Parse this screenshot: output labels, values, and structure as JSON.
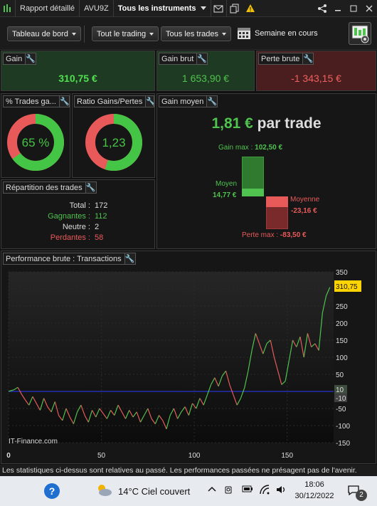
{
  "titlebar": {
    "report_label": "Rapport détaillé",
    "account": "AVU9Z",
    "instruments": "Tous les instruments",
    "warning": "!"
  },
  "toolbar": {
    "dashboard": "Tableau de bord",
    "trading": "Tout le trading",
    "trades": "Tous les trades",
    "period": "Semaine en cours"
  },
  "gain": {
    "title": "Gain",
    "value": "310,75 €"
  },
  "gain_brut": {
    "title": "Gain brut",
    "value": "1 653,90 €"
  },
  "perte_brute": {
    "title": "Perte brute",
    "value": "-1 343,15 €"
  },
  "pct_trades": {
    "title": "% Trades ga...",
    "value": "65 %",
    "fraction": 0.65
  },
  "ratio": {
    "title": "Ratio Gains/Pertes",
    "value": "1,23",
    "fraction": 0.55
  },
  "gain_moyen": {
    "title": "Gain moyen",
    "headline_value": "1,81 €",
    "headline_suffix": "par trade",
    "gain_max_label": "Gain max :",
    "gain_max": "102,50 €",
    "moyen_label": "Moyen",
    "moyen": "14,77 €",
    "moyenne_label": "Moyenne",
    "moyenne": "-23,16 €",
    "perte_max_label": "Perte max :",
    "perte_max": "-83,50 €"
  },
  "repartition": {
    "title": "Répartition des trades",
    "rows": [
      {
        "label": "Total :",
        "value": "172",
        "color": "#dddddd"
      },
      {
        "label": "Gagnantes :",
        "value": "112",
        "color": "#4fc24f"
      },
      {
        "label": "Neutre :",
        "value": "2",
        "color": "#dddddd"
      },
      {
        "label": "Perdantes :",
        "value": "58",
        "color": "#e85a5a"
      }
    ]
  },
  "performance": {
    "title": "Performance brute : Transactions",
    "watermark": "IT-Finance.com",
    "last_value": "310,75",
    "zero_marker": "10",
    "zero_marker_neg": "-10"
  },
  "chart_data": {
    "type": "line",
    "x_ticks": [
      "0",
      "50",
      "100",
      "150"
    ],
    "y_ticks": [
      "350",
      "300",
      "250",
      "200",
      "150",
      "100",
      "50",
      "0",
      "-50",
      "-100",
      "-150"
    ],
    "xlim": [
      0,
      175
    ],
    "ylim": [
      -150,
      350
    ],
    "baseline": 0,
    "series": [
      {
        "x": [
          0,
          3,
          5,
          7,
          9,
          11,
          13,
          15,
          17,
          19,
          21,
          23,
          25,
          27,
          29,
          31,
          33,
          35,
          37,
          39,
          41,
          43,
          45,
          47,
          49,
          51,
          53,
          55,
          57,
          59,
          61,
          63,
          65,
          67,
          69,
          71,
          73,
          75,
          77,
          79,
          81,
          83,
          85,
          87,
          89,
          91,
          93,
          95,
          97,
          99,
          101,
          103,
          105,
          107,
          109,
          111,
          113,
          115,
          117,
          119,
          121,
          123,
          125,
          127,
          129,
          131,
          133,
          135,
          137,
          139,
          141,
          143,
          145,
          147,
          149,
          151,
          153,
          155,
          157,
          159,
          161,
          163,
          165,
          167,
          169,
          171,
          173
        ],
        "y": [
          0,
          5,
          12,
          -8,
          -25,
          -40,
          -15,
          -35,
          -55,
          -20,
          -45,
          -60,
          -30,
          -70,
          -85,
          -50,
          -75,
          -95,
          -60,
          -40,
          -70,
          -90,
          -55,
          -75,
          -50,
          -65,
          -80,
          -55,
          -70,
          -40,
          -60,
          -80,
          -55,
          -75,
          -60,
          -90,
          -70,
          -50,
          -80,
          -95,
          -70,
          -85,
          -110,
          -70,
          -50,
          -80,
          -60,
          -45,
          -70,
          -35,
          -50,
          -20,
          -40,
          -10,
          20,
          40,
          15,
          45,
          60,
          20,
          -10,
          -40,
          -20,
          10,
          60,
          120,
          170,
          140,
          110,
          140,
          150,
          100,
          60,
          20,
          30,
          90,
          150,
          130,
          160,
          100,
          170,
          130,
          140,
          120,
          230,
          280,
          305
        ]
      }
    ]
  },
  "footer": {
    "note": "Les statistiques ci-dessus sont relatives au passé. Les performances passées ne présagent pas de l'avenir."
  },
  "taskbar": {
    "weather": "14°C  Ciel couvert",
    "time": "18:06",
    "date": "30/12/2022",
    "notif_count": "2"
  }
}
